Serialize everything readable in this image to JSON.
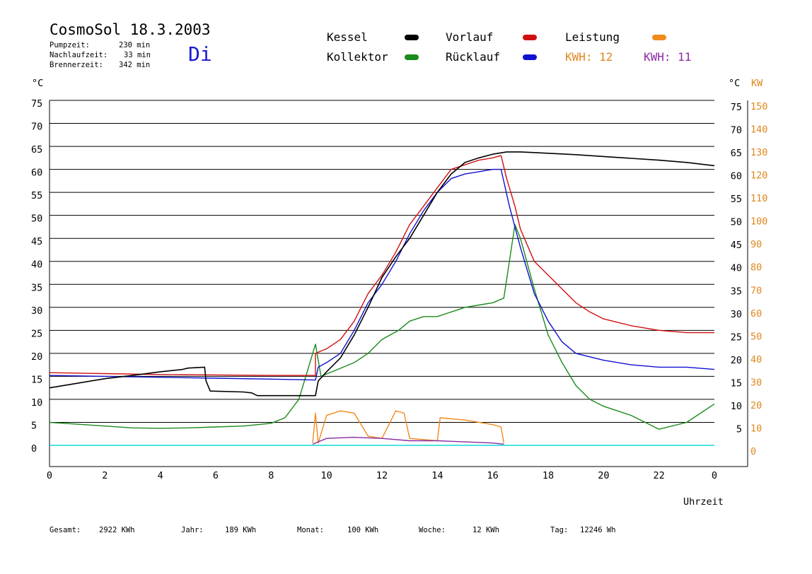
{
  "header": {
    "title": "CosmoSol 18.3.2003",
    "day": "Di",
    "stats": [
      {
        "label": "Pumpzeit:",
        "value": "230 min"
      },
      {
        "label": "Nachlaufzeit:",
        "value": "33 min"
      },
      {
        "label": "Brennerzeit:",
        "value": "342 min"
      }
    ]
  },
  "legend": {
    "kessel": "Kessel",
    "vorlauf": "Vorlauf",
    "leistung": "Leistung",
    "kollektor": "Kollektor",
    "ruecklauf": "Rücklauf",
    "kwh1": "KWH: 12",
    "kwh2": "KWH: 11"
  },
  "colors": {
    "kessel": "#000000",
    "vorlauf": "#d01010",
    "leistung": "#f08a1c",
    "kollektor": "#1a8a1a",
    "ruecklauf": "#1010d0",
    "kwh2": "#8a2aa0",
    "pump": "#10d8d8"
  },
  "axes": {
    "left_unit": "°C",
    "right_unit_c": "°C",
    "right_unit_kw": "KW",
    "x_label": "Uhrzeit",
    "y_ticks": [
      "0",
      "5",
      "10",
      "15",
      "20",
      "25",
      "30",
      "35",
      "40",
      "45",
      "50",
      "55",
      "60",
      "65",
      "70",
      "75"
    ],
    "kw_ticks": [
      "0",
      "10",
      "20",
      "30",
      "40",
      "50",
      "60",
      "70",
      "80",
      "90",
      "100",
      "110",
      "120",
      "130",
      "140",
      "150"
    ],
    "x_ticks": [
      "0",
      "2",
      "4",
      "6",
      "8",
      "10",
      "12",
      "14",
      "16",
      "18",
      "20",
      "22",
      "0"
    ]
  },
  "footer": [
    {
      "label": "Gesamt:",
      "value": "2922 KWh"
    },
    {
      "label": "Jahr:",
      "value": "189 KWh"
    },
    {
      "label": "Monat:",
      "value": "100 KWh"
    },
    {
      "label": "Woche:",
      "value": "12 KWh"
    },
    {
      "label": "Tag:",
      "value": "12246 Wh"
    }
  ],
  "chart_data": {
    "type": "line",
    "title": "CosmoSol 18.3.2003",
    "xlabel": "Uhrzeit",
    "ylabel": "°C",
    "y2label": "KW",
    "xlim": [
      0,
      24
    ],
    "ylim": [
      0,
      75
    ],
    "y2lim": [
      0,
      150
    ],
    "grid": true,
    "legend_position": "top",
    "series": [
      {
        "name": "Kessel",
        "color": "#000000",
        "points": [
          [
            0,
            12.5
          ],
          [
            1,
            13.5
          ],
          [
            2,
            14.5
          ],
          [
            3,
            15.2
          ],
          [
            4,
            16.0
          ],
          [
            4.8,
            16.5
          ],
          [
            5,
            16.8
          ],
          [
            5.6,
            17.0
          ],
          [
            5.65,
            14
          ],
          [
            5.8,
            11.8
          ],
          [
            7,
            11.6
          ],
          [
            7.3,
            11.4
          ],
          [
            7.5,
            10.8
          ],
          [
            9.6,
            10.8
          ],
          [
            9.7,
            14
          ],
          [
            10,
            16
          ],
          [
            10.5,
            19
          ],
          [
            11,
            24
          ],
          [
            11.5,
            30
          ],
          [
            12,
            36.5
          ],
          [
            12.5,
            41
          ],
          [
            13,
            45
          ],
          [
            13.5,
            50
          ],
          [
            14,
            55
          ],
          [
            14.5,
            59
          ],
          [
            15,
            61.5
          ],
          [
            15.5,
            62.5
          ],
          [
            16,
            63.3
          ],
          [
            16.5,
            63.8
          ],
          [
            17,
            63.8
          ],
          [
            18,
            63.5
          ],
          [
            19,
            63.2
          ],
          [
            20,
            62.8
          ],
          [
            21,
            62.4
          ],
          [
            22,
            62.0
          ],
          [
            23,
            61.5
          ],
          [
            24,
            60.8
          ]
        ]
      },
      {
        "name": "Vorlauf",
        "color": "#d01010",
        "points": [
          [
            0,
            15.8
          ],
          [
            2,
            15.6
          ],
          [
            4,
            15.4
          ],
          [
            6,
            15.3
          ],
          [
            8,
            15.2
          ],
          [
            9.6,
            15.2
          ],
          [
            9.6,
            20
          ],
          [
            10,
            21
          ],
          [
            10.5,
            23
          ],
          [
            11,
            27
          ],
          [
            11.5,
            33
          ],
          [
            12,
            37
          ],
          [
            12.5,
            42
          ],
          [
            13,
            48
          ],
          [
            13.5,
            52
          ],
          [
            14,
            56
          ],
          [
            14.5,
            60
          ],
          [
            15,
            61
          ],
          [
            15.5,
            62
          ],
          [
            16,
            62.5
          ],
          [
            16.3,
            63
          ],
          [
            16.5,
            58
          ],
          [
            16.8,
            52
          ],
          [
            17,
            47
          ],
          [
            17.5,
            40
          ],
          [
            18,
            37
          ],
          [
            18.5,
            34
          ],
          [
            19,
            31
          ],
          [
            19.5,
            29
          ],
          [
            20,
            27.5
          ],
          [
            21,
            26
          ],
          [
            22,
            25
          ],
          [
            23,
            24.5
          ],
          [
            24,
            24.5
          ]
        ]
      },
      {
        "name": "Rücklauf",
        "color": "#1010d0",
        "points": [
          [
            0,
            15.2
          ],
          [
            2,
            15.0
          ],
          [
            4,
            14.8
          ],
          [
            6,
            14.6
          ],
          [
            8,
            14.4
          ],
          [
            9.6,
            14.2
          ],
          [
            9.7,
            17
          ],
          [
            10,
            18
          ],
          [
            10.5,
            20
          ],
          [
            11,
            25
          ],
          [
            11.5,
            31
          ],
          [
            12,
            35
          ],
          [
            12.5,
            40
          ],
          [
            13,
            46
          ],
          [
            13.5,
            51
          ],
          [
            14,
            55
          ],
          [
            14.5,
            58
          ],
          [
            15,
            59
          ],
          [
            15.5,
            59.5
          ],
          [
            16,
            60
          ],
          [
            16.3,
            60
          ],
          [
            16.6,
            52
          ],
          [
            17,
            43
          ],
          [
            17.5,
            33
          ],
          [
            18,
            27
          ],
          [
            18.5,
            22.5
          ],
          [
            19,
            20
          ],
          [
            20,
            18.5
          ],
          [
            21,
            17.5
          ],
          [
            22,
            17
          ],
          [
            23,
            17
          ],
          [
            24,
            16.5
          ]
        ]
      },
      {
        "name": "Kollektor",
        "color": "#1a8a1a",
        "points": [
          [
            0,
            5
          ],
          [
            1,
            4.6
          ],
          [
            2,
            4.2
          ],
          [
            3,
            3.8
          ],
          [
            4,
            3.7
          ],
          [
            5,
            3.8
          ],
          [
            6,
            4.0
          ],
          [
            7,
            4.2
          ],
          [
            8,
            4.8
          ],
          [
            8.5,
            6
          ],
          [
            9,
            10
          ],
          [
            9.3,
            16
          ],
          [
            9.6,
            22
          ],
          [
            9.8,
            15
          ],
          [
            10.2,
            16
          ],
          [
            10.6,
            17
          ],
          [
            11,
            18
          ],
          [
            11.5,
            20
          ],
          [
            12,
            23
          ],
          [
            12.3,
            24
          ],
          [
            12.6,
            25
          ],
          [
            13,
            27
          ],
          [
            13.5,
            28
          ],
          [
            14,
            28
          ],
          [
            14.5,
            29
          ],
          [
            15,
            30
          ],
          [
            15.5,
            30.5
          ],
          [
            16,
            31
          ],
          [
            16.4,
            32
          ],
          [
            16.8,
            48
          ],
          [
            17,
            45
          ],
          [
            17.5,
            34
          ],
          [
            18,
            24
          ],
          [
            18.5,
            18
          ],
          [
            19,
            13
          ],
          [
            19.5,
            10
          ],
          [
            20,
            8.5
          ],
          [
            21,
            6.5
          ],
          [
            22,
            3.5
          ],
          [
            23,
            5
          ],
          [
            24,
            9
          ]
        ]
      },
      {
        "name": "Leistung",
        "color": "#f08a1c",
        "unit": "KW",
        "points": [
          [
            9.5,
            1
          ],
          [
            9.6,
            14
          ],
          [
            9.7,
            1
          ],
          [
            10,
            13
          ],
          [
            10.5,
            15
          ],
          [
            11,
            14
          ],
          [
            11.5,
            4
          ],
          [
            12,
            3
          ],
          [
            12.5,
            15
          ],
          [
            12.8,
            14
          ],
          [
            13,
            3
          ],
          [
            14,
            2
          ],
          [
            14.1,
            12
          ],
          [
            15,
            11
          ],
          [
            16,
            9
          ],
          [
            16.3,
            8
          ],
          [
            16.4,
            1
          ]
        ]
      },
      {
        "name": "KWH 11",
        "color": "#8a2aa0",
        "unit": "KW",
        "points": [
          [
            9.5,
            0.5
          ],
          [
            10,
            3
          ],
          [
            11,
            3.5
          ],
          [
            12,
            3
          ],
          [
            13,
            2
          ],
          [
            14,
            2
          ],
          [
            15,
            1.5
          ],
          [
            16,
            1
          ],
          [
            16.4,
            0.5
          ]
        ]
      }
    ]
  }
}
